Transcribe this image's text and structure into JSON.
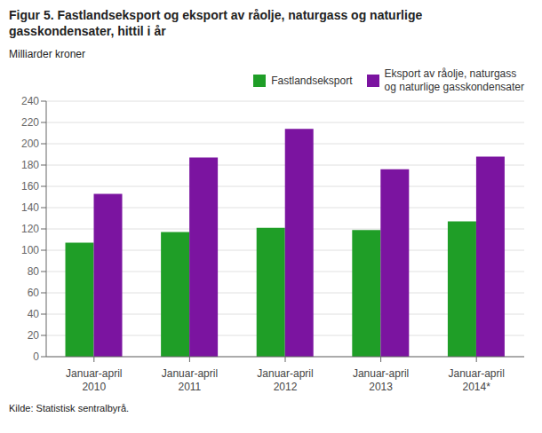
{
  "chart_data": {
    "type": "bar",
    "title": "Figur 5. Fastlandseksport og eksport av råolje, naturgass og naturlige\ngasskondensater, hittil i år",
    "ylabel": "Milliarder kroner",
    "annotations": [
      "Kilde: Statistisk sentralbyrå."
    ],
    "categories": [
      "Januar-april\n2010",
      "Januar-april\n2011",
      "Januar-april\n2012",
      "Januar-april\n2013",
      "Januar-april\n2014*"
    ],
    "series": [
      {
        "name": "Fastlandseksport",
        "color": "#1f9e27",
        "values": [
          107,
          117,
          121,
          119,
          127
        ]
      },
      {
        "name": "Eksport av råolje, naturgass\nog naturlige gasskondensater",
        "color": "#7b14a0",
        "values": [
          153,
          187,
          214,
          176,
          188
        ]
      }
    ],
    "ylim": [
      0,
      240
    ],
    "yticks": [
      0,
      20,
      40,
      60,
      80,
      100,
      120,
      140,
      160,
      180,
      200,
      220,
      240
    ],
    "grid": true,
    "legend": "upper right"
  }
}
